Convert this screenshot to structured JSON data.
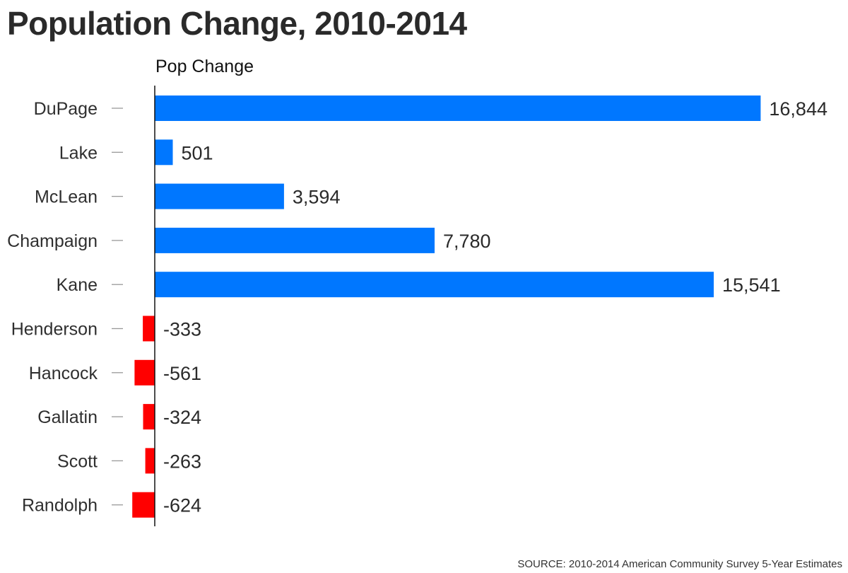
{
  "title": "Population Change, 2010-2014",
  "source": "SOURCE: 2010-2014 American Community Survey 5-Year Estimates",
  "colors": {
    "positive": "#0077ff",
    "negative": "#ff0000",
    "axis": "#111111",
    "tick": "#999999"
  },
  "chart_data": {
    "type": "bar",
    "orientation": "horizontal",
    "series": [
      {
        "name": "Pop Change",
        "values": [
          16844,
          501,
          3594,
          7780,
          15541,
          -333,
          -561,
          -324,
          -263,
          -624
        ]
      }
    ],
    "categories": [
      "DuPage",
      "Lake",
      "McLean",
      "Champaign",
      "Kane",
      "Henderson",
      "Hancock",
      "Gallatin",
      "Scott",
      "Randolph"
    ],
    "value_labels": [
      "16,844",
      "501",
      "3,594",
      "7,780",
      "15,541",
      "-333",
      "-561",
      "-324",
      "-263",
      "-624"
    ],
    "xlim": [
      -624,
      16844
    ],
    "grid": false,
    "legend": "none"
  }
}
